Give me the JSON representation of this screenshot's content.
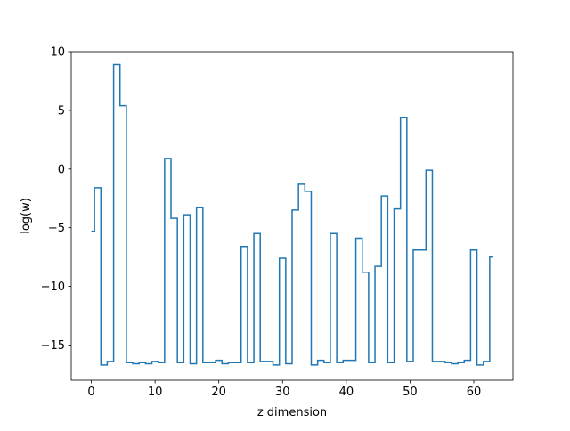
{
  "chart_data": {
    "type": "line",
    "drawstyle": "steps-mid",
    "title": "",
    "xlabel": "z dimension",
    "ylabel": "log(w)",
    "xlim": [
      -3.15,
      66.15
    ],
    "ylim": [
      -18.0,
      10.0
    ],
    "xticks": [
      0,
      10,
      20,
      30,
      40,
      50,
      60
    ],
    "yticks": [
      10,
      5,
      0,
      -5,
      -10,
      -15
    ],
    "grid": false,
    "legend": "none",
    "colors": {
      "line": "#1f77b4",
      "axes": "#000000",
      "background": "#ffffff"
    },
    "series": [
      {
        "x": [
          0,
          1,
          2,
          3,
          4,
          5,
          6,
          7,
          8,
          9,
          10,
          11,
          12,
          13,
          14,
          15,
          16,
          17,
          18,
          19,
          20,
          21,
          22,
          23,
          24,
          25,
          26,
          27,
          28,
          29,
          30,
          31,
          32,
          33,
          34,
          35,
          36,
          37,
          38,
          39,
          40,
          41,
          42,
          43,
          44,
          45,
          46,
          47,
          48,
          49,
          50,
          51,
          52,
          53,
          54,
          55,
          56,
          57,
          58,
          59,
          60,
          61,
          62,
          63
        ],
        "values": [
          -5.3,
          -1.6,
          -16.7,
          -16.4,
          8.9,
          5.4,
          -16.5,
          -16.6,
          -16.5,
          -16.6,
          -16.4,
          -16.5,
          0.9,
          -4.2,
          -16.5,
          -3.9,
          -16.6,
          -3.3,
          -16.5,
          -16.5,
          -16.3,
          -16.6,
          -16.5,
          -16.5,
          -6.6,
          -16.5,
          -5.5,
          -16.4,
          -16.4,
          -16.7,
          -7.6,
          -16.6,
          -3.5,
          -1.3,
          -1.9,
          -16.7,
          -16.3,
          -16.5,
          -5.5,
          -16.5,
          -16.3,
          -16.3,
          -5.9,
          -8.8,
          -16.5,
          -8.3,
          -2.3,
          -16.5,
          -3.4,
          4.4,
          -16.4,
          -6.9,
          -6.9,
          -0.1,
          -16.4,
          -16.4,
          -16.5,
          -16.6,
          -16.5,
          -16.3,
          -6.9,
          -16.7,
          -16.4,
          -7.5
        ]
      }
    ]
  }
}
